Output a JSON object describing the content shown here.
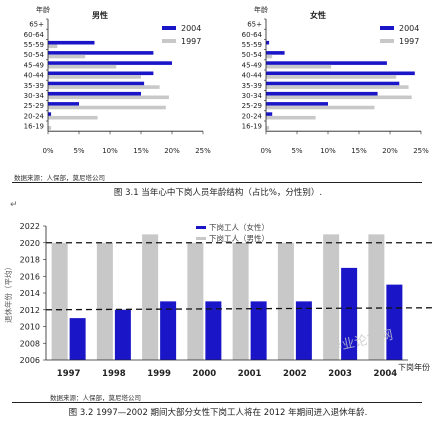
{
  "chart_data": [
    {
      "type": "bar",
      "orientation": "horizontal",
      "title": "男性",
      "ylabel": "年龄",
      "categories": [
        "65+",
        "60-64",
        "55-59",
        "50-54",
        "45-49",
        "40-44",
        "35-39",
        "30-34",
        "25-29",
        "20-24",
        "16-19"
      ],
      "series": [
        {
          "name": "2004",
          "color": "#1a16c8",
          "values": [
            0,
            0,
            7.5,
            17,
            20,
            17,
            15.5,
            15,
            5,
            0.5,
            0
          ]
        },
        {
          "name": "1997",
          "color": "#c8c8c8",
          "values": [
            0,
            0,
            1.5,
            6,
            11,
            15,
            18,
            19.5,
            19,
            8,
            0.5
          ]
        }
      ],
      "xticks": [
        "0%",
        "5%",
        "10%",
        "15%",
        "20%",
        "25%"
      ],
      "xlim": [
        0,
        25
      ],
      "legend": "top-right"
    },
    {
      "type": "bar",
      "orientation": "horizontal",
      "title": "女性",
      "ylabel": "年龄",
      "categories": [
        "65+",
        "60-64",
        "55-59",
        "50-54",
        "45-49",
        "40-44",
        "35-39",
        "30-34",
        "25-29",
        "20-24",
        "16-19"
      ],
      "series": [
        {
          "name": "2004",
          "color": "#1a16c8",
          "values": [
            0,
            0,
            0.5,
            3,
            19.5,
            24,
            21.5,
            18,
            10,
            1,
            0
          ]
        },
        {
          "name": "1997",
          "color": "#c8c8c8",
          "values": [
            0,
            0,
            0,
            1,
            10.5,
            21,
            23,
            23.5,
            17.5,
            8,
            0.5
          ]
        }
      ],
      "xticks": [
        "0%",
        "5%",
        "10%",
        "15%",
        "20%",
        "25%"
      ],
      "xlim": [
        0,
        25
      ],
      "legend": "top-right"
    },
    {
      "type": "bar",
      "categories": [
        "1997",
        "1998",
        "1999",
        "2000",
        "2001",
        "2002",
        "2003",
        "2004"
      ],
      "series": [
        {
          "name": "下岗工人（男性）",
          "color": "#c8c8c8",
          "values": [
            2020,
            2020,
            2021,
            2020,
            2020,
            2020,
            2021,
            2021
          ]
        },
        {
          "name": "下岗工人（女性）",
          "color": "#1a16c8",
          "values": [
            2011,
            2012,
            2013,
            2013,
            2013,
            2013,
            2017,
            2015
          ]
        }
      ],
      "ylabel": "退休年份（平均）",
      "ylim": [
        2006,
        2022
      ],
      "yticks": [
        2006,
        2008,
        2010,
        2012,
        2014,
        2016,
        2018,
        2020,
        2022
      ],
      "reference_lines": [
        2020,
        2012
      ],
      "annotation": "下岗年份",
      "legend": "top-center"
    }
  ],
  "text": {
    "source1": "数据来源：人保部，莫尼塔公司",
    "caption1": "图 3.1  当年心中下岗人员年龄结构（占比%，分性别）.",
    "source2": "数据来源：人保部，莫尼塔公司",
    "caption2": "图 3.2   1997—2002 期间大部分女性下岗工人将在 2012 年期间进入退休年龄.",
    "watermark": "毕业论文网"
  }
}
